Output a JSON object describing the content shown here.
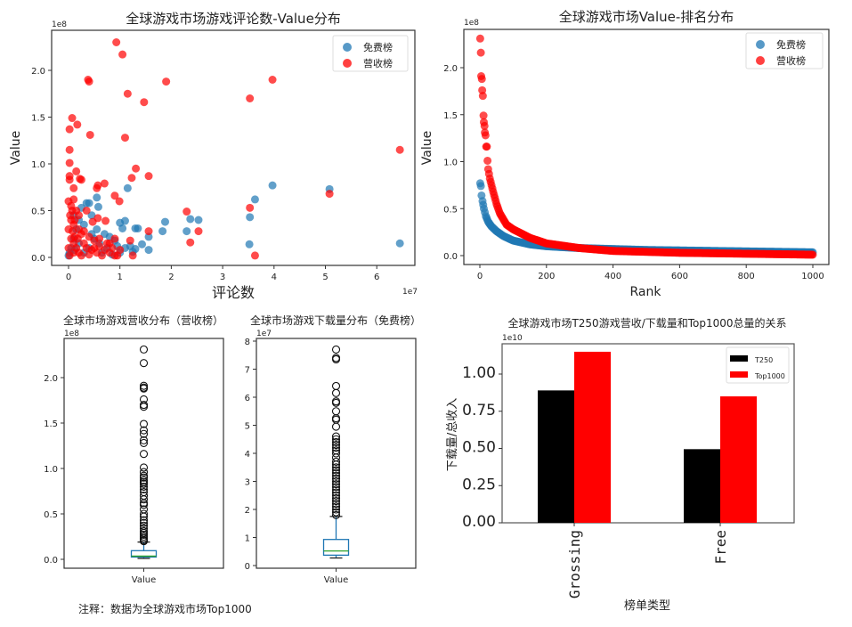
{
  "note": "注释：数据为全球游戏市场Top1000",
  "chart_data": [
    {
      "type": "scatter",
      "title": "全球游戏市场游戏评论数-Value分布",
      "xlabel": "评论数",
      "ylabel": "Value",
      "x_offset_label": "1e7",
      "y_offset_label": "1e8",
      "xlim": [
        -0.33,
        6.75
      ],
      "ylim": [
        -0.09,
        2.42
      ],
      "xticks": [
        0,
        1,
        2,
        3,
        4,
        5,
        6
      ],
      "yticks": [
        0.0,
        0.5,
        1.0,
        1.5,
        2.0
      ],
      "xtick_labels": [
        "0",
        "1",
        "2",
        "3",
        "4",
        "5",
        "6"
      ],
      "ytick_labels": [
        "0.0",
        "0.5",
        "1.0",
        "1.5",
        "2.0"
      ],
      "legend_position": "top-right",
      "series": [
        {
          "name": "免费榜",
          "color": "#1f77b4",
          "points": [
            [
              6.45,
              0.15
            ],
            [
              5.08,
              0.73
            ],
            [
              3.97,
              0.77
            ],
            [
              3.63,
              0.62
            ],
            [
              3.53,
              0.43
            ],
            [
              3.52,
              0.14
            ],
            [
              2.53,
              0.4
            ],
            [
              2.37,
              0.41
            ],
            [
              2.3,
              0.28
            ],
            [
              1.88,
              0.38
            ],
            [
              1.83,
              0.28
            ],
            [
              1.56,
              0.22
            ],
            [
              1.56,
              0.08
            ],
            [
              1.43,
              0.14
            ],
            [
              1.35,
              0.31
            ],
            [
              1.3,
              0.31
            ],
            [
              1.15,
              0.74
            ],
            [
              1.1,
              0.39
            ],
            [
              1.05,
              0.31
            ],
            [
              1.0,
              0.37
            ],
            [
              0.55,
              0.64
            ],
            [
              0.58,
              0.54
            ],
            [
              0.35,
              0.58
            ],
            [
              0.4,
              0.58
            ],
            [
              0.45,
              0.45
            ],
            [
              0.25,
              0.53
            ],
            [
              0.8,
              0.22
            ],
            [
              0.9,
              0.18
            ],
            [
              1.2,
              0.12
            ],
            [
              1.3,
              0.09
            ],
            [
              0.7,
              0.25
            ],
            [
              0.3,
              0.35
            ],
            [
              0.2,
              0.4
            ],
            [
              0.6,
              0.15
            ],
            [
              0.5,
              0.2
            ],
            [
              0.4,
              0.1
            ],
            [
              0.65,
              0.05
            ],
            [
              0.75,
              0.1
            ],
            [
              1.0,
              0.05
            ],
            [
              1.1,
              0.1
            ],
            [
              0.15,
              0.3
            ],
            [
              0.1,
              0.2
            ],
            [
              0.05,
              0.1
            ],
            [
              0.3,
              0.05
            ],
            [
              0.85,
              0.03
            ],
            [
              0.95,
              0.12
            ],
            [
              1.25,
              0.06
            ],
            [
              0.55,
              0.3
            ],
            [
              0.45,
              0.25
            ],
            [
              0.2,
              0.15
            ],
            [
              0.02,
              0.05
            ],
            [
              0.1,
              0.45
            ],
            [
              0.0,
              0.02
            ],
            [
              0.12,
              0.08
            ]
          ]
        },
        {
          "name": "营收榜",
          "color": "#ff0000",
          "points": [
            [
              0.93,
              2.3
            ],
            [
              1.05,
              2.17
            ],
            [
              0.38,
              1.9
            ],
            [
              0.4,
              1.88
            ],
            [
              1.9,
              1.88
            ],
            [
              3.97,
              1.9
            ],
            [
              1.15,
              1.75
            ],
            [
              1.47,
              1.66
            ],
            [
              3.53,
              1.7
            ],
            [
              0.07,
              1.49
            ],
            [
              0.17,
              1.42
            ],
            [
              0.02,
              1.37
            ],
            [
              0.42,
              1.31
            ],
            [
              1.1,
              1.28
            ],
            [
              0.02,
              1.15
            ],
            [
              6.45,
              1.15
            ],
            [
              0.02,
              1.01
            ],
            [
              1.31,
              0.95
            ],
            [
              0.15,
              0.92
            ],
            [
              0.02,
              0.87
            ],
            [
              0.02,
              0.83
            ],
            [
              0.22,
              0.84
            ],
            [
              0.25,
              0.83
            ],
            [
              1.23,
              0.85
            ],
            [
              1.56,
              0.87
            ],
            [
              0.7,
              0.79
            ],
            [
              0.57,
              0.77
            ],
            [
              0.55,
              0.74
            ],
            [
              0.1,
              0.74
            ],
            [
              0.9,
              0.66
            ],
            [
              0.99,
              0.6
            ],
            [
              5.08,
              0.68
            ],
            [
              3.53,
              0.53
            ],
            [
              2.3,
              0.49
            ],
            [
              0.35,
              0.5
            ],
            [
              0.72,
              0.39
            ],
            [
              0.57,
              0.42
            ],
            [
              0.47,
              0.38
            ],
            [
              1.56,
              0.28
            ],
            [
              2.53,
              0.28
            ],
            [
              2.37,
              0.16
            ],
            [
              3.63,
              0.02
            ],
            [
              1.25,
              0.02
            ],
            [
              0.9,
              0.2
            ],
            [
              0.8,
              0.15
            ],
            [
              1.2,
              0.18
            ],
            [
              0.0,
              0.6
            ],
            [
              0.05,
              0.55
            ],
            [
              0.1,
              0.62
            ],
            [
              0.15,
              0.5
            ],
            [
              0.2,
              0.45
            ],
            [
              0.05,
              0.4
            ],
            [
              0.1,
              0.35
            ],
            [
              0.2,
              0.3
            ],
            [
              0.3,
              0.28
            ],
            [
              0.4,
              0.22
            ],
            [
              0.5,
              0.18
            ],
            [
              0.6,
              0.12
            ],
            [
              0.7,
              0.08
            ],
            [
              0.8,
              0.05
            ],
            [
              0.9,
              0.02
            ],
            [
              0.0,
              0.3
            ],
            [
              0.05,
              0.2
            ],
            [
              0.1,
              0.15
            ],
            [
              0.15,
              0.1
            ],
            [
              0.2,
              0.05
            ],
            [
              0.25,
              0.02
            ],
            [
              0.3,
              0.15
            ],
            [
              0.35,
              0.1
            ],
            [
              0.45,
              0.08
            ],
            [
              0.55,
              0.05
            ],
            [
              0.65,
              0.02
            ],
            [
              0.0,
              0.1
            ],
            [
              0.02,
              0.02
            ],
            [
              0.1,
              0.05
            ],
            [
              0.25,
              0.25
            ],
            [
              0.12,
              0.22
            ],
            [
              0.08,
              0.28
            ],
            [
              0.18,
              0.2
            ],
            [
              0.4,
              0.03
            ],
            [
              0.5,
              0.1
            ],
            [
              0.75,
              0.15
            ],
            [
              0.85,
              0.1
            ],
            [
              1.0,
              0.08
            ],
            [
              0.95,
              0.02
            ],
            [
              0.6,
              0.2
            ],
            [
              0.03,
              0.45
            ],
            [
              0.07,
              0.5
            ],
            [
              0.12,
              0.4
            ]
          ]
        }
      ]
    },
    {
      "type": "scatter",
      "title": "全球游戏市场Value-排名分布",
      "xlabel": "Rank",
      "ylabel": "Value",
      "y_offset_label": "1e8",
      "xlim": [
        -50,
        1050
      ],
      "ylim": [
        -0.09,
        2.42
      ],
      "xticks": [
        0,
        200,
        400,
        600,
        800,
        1000
      ],
      "yticks": [
        0.0,
        0.5,
        1.0,
        1.5,
        2.0
      ],
      "xtick_labels": [
        "0",
        "200",
        "400",
        "600",
        "800",
        "1000"
      ],
      "ytick_labels": [
        "0.0",
        "0.5",
        "1.0",
        "1.5",
        "2.0"
      ],
      "legend_position": "top-right",
      "series": [
        {
          "name": "免费榜",
          "color": "#1f77b4",
          "points": [
            [
              1,
              0.77
            ],
            [
              3,
              0.74
            ],
            [
              5,
              0.64
            ],
            [
              8,
              0.58
            ],
            [
              12,
              0.5
            ],
            [
              18,
              0.42
            ],
            [
              25,
              0.36
            ],
            [
              35,
              0.31
            ],
            [
              50,
              0.26
            ],
            [
              70,
              0.21
            ],
            [
              100,
              0.16
            ],
            [
              150,
              0.12
            ],
            [
              200,
              0.1
            ],
            [
              300,
              0.08
            ],
            [
              400,
              0.07
            ],
            [
              500,
              0.06
            ],
            [
              600,
              0.055
            ],
            [
              700,
              0.05
            ],
            [
              800,
              0.045
            ],
            [
              900,
              0.04
            ],
            [
              1000,
              0.035
            ]
          ]
        },
        {
          "name": "营收榜",
          "color": "#ff0000",
          "points": [
            [
              1,
              2.31
            ],
            [
              3,
              2.16
            ],
            [
              4,
              1.91
            ],
            [
              6,
              1.88
            ],
            [
              7,
              1.76
            ],
            [
              9,
              1.7
            ],
            [
              11,
              1.49
            ],
            [
              12,
              1.42
            ],
            [
              14,
              1.38
            ],
            [
              15,
              1.31
            ],
            [
              17,
              1.28
            ],
            [
              19,
              1.16
            ],
            [
              21,
              1.16
            ],
            [
              23,
              1.01
            ],
            [
              25,
              0.92
            ],
            [
              30,
              0.82
            ],
            [
              40,
              0.68
            ],
            [
              50,
              0.55
            ],
            [
              60,
              0.45
            ],
            [
              80,
              0.33
            ],
            [
              100,
              0.28
            ],
            [
              150,
              0.19
            ],
            [
              200,
              0.13
            ],
            [
              300,
              0.08
            ],
            [
              400,
              0.05
            ],
            [
              500,
              0.04
            ],
            [
              600,
              0.03
            ],
            [
              700,
              0.025
            ],
            [
              800,
              0.02
            ],
            [
              900,
              0.015
            ],
            [
              1000,
              0.01
            ]
          ]
        }
      ]
    },
    {
      "type": "box",
      "title": "全球市场游戏营收分布（营收榜）",
      "xtick_labels": [
        "Value"
      ],
      "y_offset_label": "1e8",
      "ylim": [
        -0.09,
        2.42
      ],
      "yticks": [
        0.0,
        0.5,
        1.0,
        1.5,
        2.0
      ],
      "ytick_labels": [
        "0.0",
        "0.5",
        "1.0",
        "1.5",
        "2.0"
      ],
      "stats": {
        "whisker_low": 0.01,
        "q1": 0.025,
        "median": 0.035,
        "q3": 0.095,
        "whisker_high": 0.19
      },
      "outliers": [
        2.31,
        2.16,
        1.91,
        1.89,
        1.88,
        1.76,
        1.7,
        1.68,
        1.49,
        1.42,
        1.38,
        1.31,
        1.28,
        1.16,
        1.01,
        0.96,
        0.92,
        0.9,
        0.87,
        0.85,
        0.83,
        0.8,
        0.77,
        0.74,
        0.7,
        0.66,
        0.62,
        0.6,
        0.55,
        0.5,
        0.47,
        0.43,
        0.4,
        0.37,
        0.34,
        0.31,
        0.29,
        0.27,
        0.25,
        0.23,
        0.21,
        0.2
      ]
    },
    {
      "type": "box",
      "title": "全球市场游戏下载量分布（免费榜）",
      "xtick_labels": [
        "Value"
      ],
      "y_offset_label": "1e7",
      "ylim": [
        -0.2,
        8.1
      ],
      "yticks": [
        0,
        1,
        2,
        3,
        4,
        5,
        6,
        7,
        8
      ],
      "ytick_labels": [
        "0",
        "1",
        "2",
        "3",
        "4",
        "5",
        "6",
        "7",
        "8"
      ],
      "stats": {
        "whisker_low": 0.27,
        "q1": 0.37,
        "median": 0.52,
        "q3": 0.93,
        "whisker_high": 1.75
      },
      "outliers": [
        7.7,
        7.4,
        7.35,
        6.4,
        6.15,
        5.85,
        5.8,
        5.5,
        5.25,
        5.2,
        4.95,
        4.6,
        4.5,
        4.4,
        4.3,
        4.2,
        4.1,
        4.0,
        3.85,
        3.7,
        3.6,
        3.5,
        3.4,
        3.3,
        3.2,
        3.1,
        3.0,
        2.9,
        2.8,
        2.7,
        2.6,
        2.5,
        2.4,
        2.3,
        2.2,
        2.1,
        2.0,
        1.9,
        1.8
      ]
    },
    {
      "type": "bar",
      "title": "全球游戏市场T250游戏营收/下载量和Top1000总量的关系",
      "xlabel": "榜单类型",
      "ylabel": "下载量/总收入",
      "y_offset_label": "1e10",
      "categories": [
        "Grossing",
        "Free"
      ],
      "ylim": [
        0,
        1.2
      ],
      "yticks": [
        0,
        0.25,
        0.5,
        0.75,
        1.0
      ],
      "ytick_labels": [
        "0.00",
        "0.25",
        "0.50",
        "0.75",
        "1.00"
      ],
      "legend_position": "top-right",
      "series": [
        {
          "name": "T250",
          "color": "#000000",
          "values": [
            0.89,
            0.495
          ]
        },
        {
          "name": "Top1000",
          "color": "#ff0000",
          "values": [
            1.15,
            0.85
          ]
        }
      ]
    }
  ]
}
